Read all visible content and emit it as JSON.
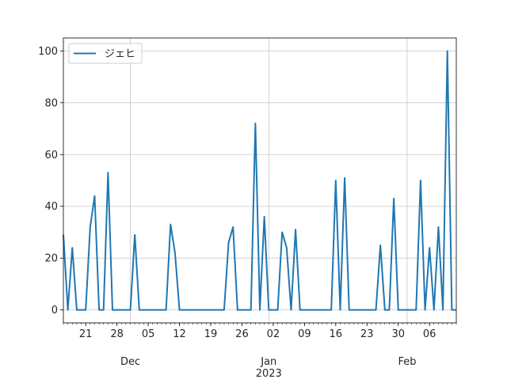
{
  "chart_data": {
    "type": "line",
    "title": "",
    "xlabel": "",
    "ylabel": "",
    "ylim": [
      -5,
      105
    ],
    "yticks": [
      0,
      20,
      40,
      60,
      80,
      100
    ],
    "grid": true,
    "legend_position": "top-left",
    "x_major_ticks": [
      {
        "date": "2022-11-21",
        "label": "21"
      },
      {
        "date": "2022-11-28",
        "label": "28"
      },
      {
        "date": "2022-12-05",
        "label": "05"
      },
      {
        "date": "2022-12-12",
        "label": "12"
      },
      {
        "date": "2022-12-19",
        "label": "19"
      },
      {
        "date": "2022-12-26",
        "label": "26"
      },
      {
        "date": "2023-01-02",
        "label": "02"
      },
      {
        "date": "2023-01-09",
        "label": "09"
      },
      {
        "date": "2023-01-16",
        "label": "16"
      },
      {
        "date": "2023-01-23",
        "label": "23"
      },
      {
        "date": "2023-01-30",
        "label": "30"
      },
      {
        "date": "2023-02-06",
        "label": "06"
      }
    ],
    "x_month_labels": [
      {
        "date": "2022-12-01",
        "label": "Dec"
      },
      {
        "date": "2023-01-01",
        "label": "Jan"
      },
      {
        "date": "2023-02-01",
        "label": "Feb"
      }
    ],
    "x_year_label": {
      "date": "2023-01-01",
      "label": "2023"
    },
    "series": [
      {
        "name": "ジェヒ",
        "color": "#1f77b4",
        "x": [
          "2022-11-16",
          "2022-11-17",
          "2022-11-18",
          "2022-11-19",
          "2022-11-20",
          "2022-11-21",
          "2022-11-22",
          "2022-11-23",
          "2022-11-24",
          "2022-11-25",
          "2022-11-26",
          "2022-11-27",
          "2022-11-28",
          "2022-11-29",
          "2022-11-30",
          "2022-12-01",
          "2022-12-02",
          "2022-12-03",
          "2022-12-04",
          "2022-12-05",
          "2022-12-06",
          "2022-12-07",
          "2022-12-08",
          "2022-12-09",
          "2022-12-10",
          "2022-12-11",
          "2022-12-12",
          "2022-12-13",
          "2022-12-14",
          "2022-12-15",
          "2022-12-16",
          "2022-12-17",
          "2022-12-18",
          "2022-12-19",
          "2022-12-20",
          "2022-12-21",
          "2022-12-22",
          "2022-12-23",
          "2022-12-24",
          "2022-12-25",
          "2022-12-26",
          "2022-12-27",
          "2022-12-28",
          "2022-12-29",
          "2022-12-30",
          "2022-12-31",
          "2023-01-01",
          "2023-01-02",
          "2023-01-03",
          "2023-01-04",
          "2023-01-05",
          "2023-01-06",
          "2023-01-07",
          "2023-01-08",
          "2023-01-09",
          "2023-01-10",
          "2023-01-11",
          "2023-01-12",
          "2023-01-13",
          "2023-01-14",
          "2023-01-15",
          "2023-01-16",
          "2023-01-17",
          "2023-01-18",
          "2023-01-19",
          "2023-01-20",
          "2023-01-21",
          "2023-01-22",
          "2023-01-23",
          "2023-01-24",
          "2023-01-25",
          "2023-01-26",
          "2023-01-27",
          "2023-01-28",
          "2023-01-29",
          "2023-01-30",
          "2023-01-31",
          "2023-02-01",
          "2023-02-02",
          "2023-02-03",
          "2023-02-04",
          "2023-02-05",
          "2023-02-06",
          "2023-02-07",
          "2023-02-08",
          "2023-02-09",
          "2023-02-10",
          "2023-02-11",
          "2023-02-12"
        ],
        "y": [
          29,
          0,
          24,
          0,
          0,
          0,
          32,
          44,
          0,
          0,
          53,
          0,
          0,
          0,
          0,
          0,
          29,
          0,
          0,
          0,
          0,
          0,
          0,
          0,
          33,
          22,
          0,
          0,
          0,
          0,
          0,
          0,
          0,
          0,
          0,
          0,
          0,
          26,
          32,
          0,
          0,
          0,
          0,
          72,
          0,
          36,
          0,
          0,
          0,
          30,
          24,
          0,
          31,
          0,
          0,
          0,
          0,
          0,
          0,
          0,
          0,
          50,
          0,
          51,
          0,
          0,
          0,
          0,
          0,
          0,
          0,
          25,
          0,
          0,
          43,
          0,
          0,
          0,
          0,
          0,
          50,
          0,
          24,
          0,
          32,
          0,
          100,
          0,
          0
        ]
      }
    ]
  }
}
